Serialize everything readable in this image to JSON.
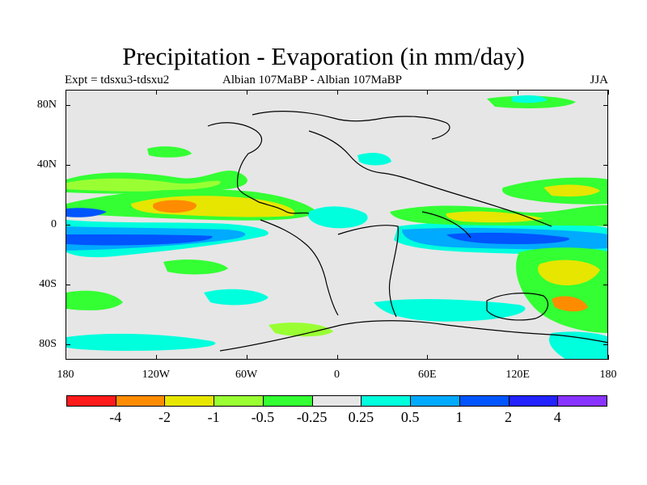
{
  "title": "Precipitation - Evaporation (in mm/day)",
  "subtitle_left": "Expt = tdsxu3-tdsxu2",
  "subtitle_center": "Albian   107MaBP - Albian   107MaBP",
  "subtitle_right": "JJA",
  "map": {
    "projection": "cylindrical-equidistant",
    "background_color": "#e6e6e6",
    "lat_ticks": [
      {
        "value": 80,
        "label": "80N"
      },
      {
        "value": 40,
        "label": "40N"
      },
      {
        "value": 0,
        "label": "0"
      },
      {
        "value": -40,
        "label": "40S"
      },
      {
        "value": -80,
        "label": "80S"
      }
    ],
    "lon_ticks": [
      {
        "value": -180,
        "label": "180"
      },
      {
        "value": -120,
        "label": "120W"
      },
      {
        "value": -60,
        "label": "60W"
      },
      {
        "value": 0,
        "label": "0"
      },
      {
        "value": 60,
        "label": "60E"
      },
      {
        "value": 120,
        "label": "120E"
      },
      {
        "value": 180,
        "label": "180"
      }
    ]
  },
  "colorbar": {
    "colors": [
      "#ff1a1a",
      "#ff8c00",
      "#e6e600",
      "#99ff33",
      "#33ff33",
      "#e6e6e6",
      "#00ffdd",
      "#00aaff",
      "#0055ff",
      "#2222ff",
      "#8833ff"
    ],
    "labels": [
      "-4",
      "-2",
      "-1",
      "-0.5",
      "-0.25",
      "0.25",
      "0.5",
      "1",
      "2",
      "4"
    ]
  }
}
